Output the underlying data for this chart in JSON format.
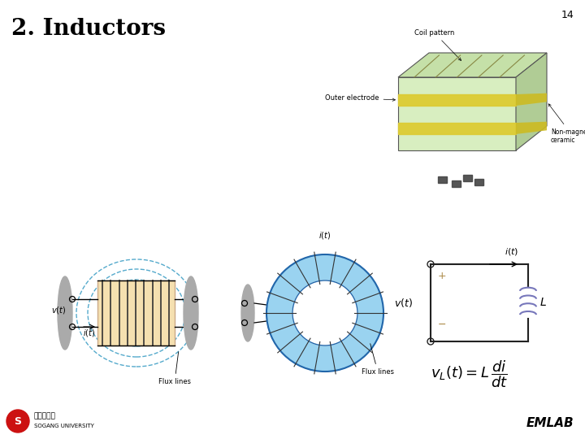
{
  "title": "2. Inductors",
  "page_number": "14",
  "footer_text": "EMLAB",
  "bg": "#ffffff",
  "title_fontsize": 20,
  "inductor_color": "#7777bb",
  "wire_color": "#222222",
  "flux_color": "#55aacc",
  "plus_color": "#aa8844",
  "minus_color": "#aa8844"
}
